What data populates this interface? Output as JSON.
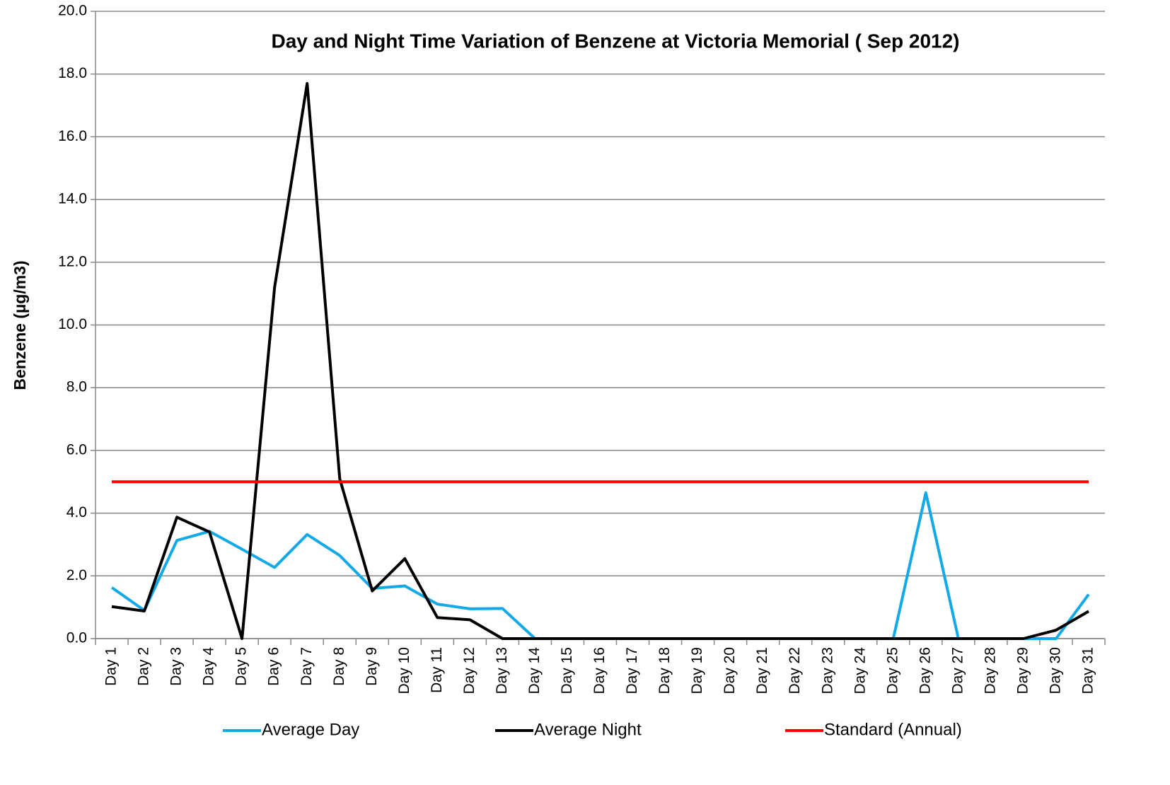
{
  "chart_data": {
    "type": "line",
    "title": "Day and Night Time Variation of Benzene at Victoria Memorial ( Sep 2012)",
    "y_label": "Benzene (µg/m3)",
    "categories": [
      "Day 1",
      "Day 2",
      "Day 3",
      "Day 4",
      "Day 5",
      "Day 6",
      "Day 7",
      "Day 8",
      "Day 9",
      "Day 10",
      "Day 11",
      "Day 12",
      "Day 13",
      "Day 14",
      "Day 15",
      "Day 16",
      "Day 17",
      "Day 18",
      "Day 19",
      "Day 20",
      "Day 21",
      "Day 22",
      "Day 23",
      "Day 24",
      "Day 25",
      "Day 26",
      "Day 27",
      "Day 28",
      "Day 29",
      "Day 30",
      "Day 31"
    ],
    "series": [
      {
        "name": "Average Day",
        "color": "#12a9e6",
        "values": [
          1.63,
          0.9,
          3.13,
          3.42,
          2.85,
          2.27,
          3.32,
          2.65,
          1.6,
          1.68,
          1.1,
          0.95,
          0.96,
          0,
          0,
          0,
          0,
          0,
          0,
          0,
          0,
          0,
          0,
          0,
          0,
          4.65,
          0,
          0,
          0,
          0,
          1.41
        ]
      },
      {
        "name": "Average Night",
        "color": "#000000",
        "values": [
          1.02,
          0.88,
          3.87,
          3.4,
          0,
          11.2,
          17.7,
          5.1,
          1.52,
          2.55,
          0.67,
          0.6,
          0,
          0,
          0,
          0,
          0,
          0,
          0,
          0,
          0,
          0,
          0,
          0,
          0,
          0,
          0,
          0,
          0,
          0.27,
          0.87
        ]
      },
      {
        "name": "Standard (Annual)",
        "color": "#ff0000",
        "values": [
          5,
          5,
          5,
          5,
          5,
          5,
          5,
          5,
          5,
          5,
          5,
          5,
          5,
          5,
          5,
          5,
          5,
          5,
          5,
          5,
          5,
          5,
          5,
          5,
          5,
          5,
          5,
          5,
          5,
          5,
          5
        ]
      }
    ],
    "ylim": [
      0,
      20
    ],
    "yticks": [
      {
        "value": 0,
        "label": "0.0"
      },
      {
        "value": 2,
        "label": "2.0"
      },
      {
        "value": 4,
        "label": "4.0"
      },
      {
        "value": 6,
        "label": "6.0"
      },
      {
        "value": 8,
        "label": "8.0"
      },
      {
        "value": 10,
        "label": "10.0"
      },
      {
        "value": 12,
        "label": "12.0"
      },
      {
        "value": 14,
        "label": "14.0"
      },
      {
        "value": 16,
        "label": "16.0"
      },
      {
        "value": 18,
        "label": "18.0"
      },
      {
        "value": 20,
        "label": "20.0"
      }
    ],
    "grid": true
  }
}
